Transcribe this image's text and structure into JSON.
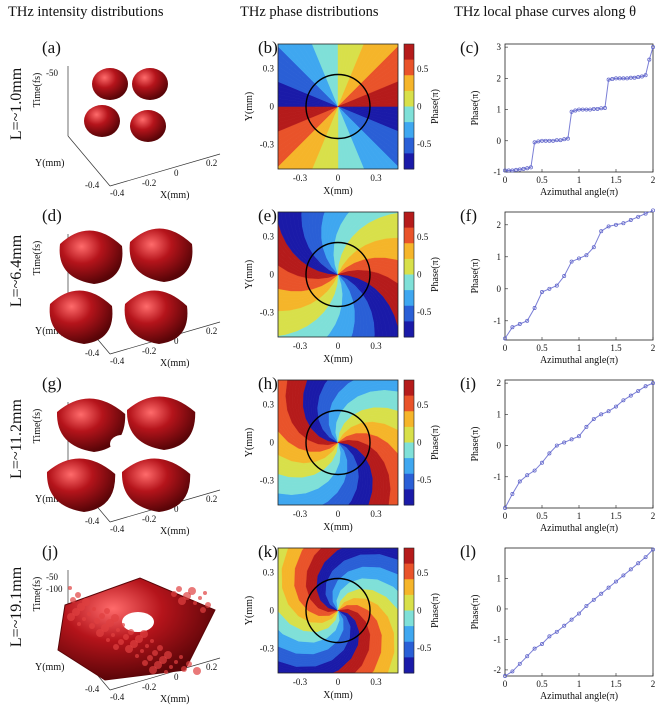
{
  "headers": {
    "col1": "THz intensity distributions",
    "col2": "THz phase distributions",
    "col3": "THz local phase curves along θ"
  },
  "rows": [
    {
      "L": "L=~1.0mm",
      "panels": [
        "(a)",
        "(b)",
        "(c)"
      ],
      "time_ticks": [
        "-50"
      ]
    },
    {
      "L": "L=~6.4mm",
      "panels": [
        "(d)",
        "(e)",
        "(f)"
      ],
      "time_ticks": []
    },
    {
      "L": "L=~11.2mm",
      "panels": [
        "(g)",
        "(h)",
        "(i)"
      ],
      "time_ticks": []
    },
    {
      "L": "L=~19.1mm",
      "panels": [
        "(j)",
        "(k)",
        "(l)"
      ],
      "time_ticks": [
        "-50",
        "-100"
      ]
    }
  ],
  "surface_axes": {
    "time_label": "Time(fs)",
    "y_label": "Y(mm)",
    "x_label": "X(mm)",
    "y_ticks": [
      "-0.4"
    ],
    "x_ticks": [
      "-0.4",
      "-0.2",
      "0",
      "0.2"
    ],
    "colors": {
      "surface": "#b5141b",
      "highlight": "#ff6b6b",
      "shade": "#5a0508"
    }
  },
  "phase_map_axes": {
    "ylabel": "Y(mm)",
    "xlabel": "X(mm)",
    "yticks": [
      "0.3",
      "0",
      "-0.3"
    ],
    "xticks": [
      "-0.3",
      "0",
      "0.3"
    ],
    "cbar_label": "Phase(π)",
    "cbar_ticks": [
      "0.5",
      "0",
      "-0.5"
    ]
  },
  "chart_data": [
    {
      "panel": "(c)",
      "type": "line",
      "xlabel": "Azimuthal angle(π)",
      "ylabel": "Phase(π)",
      "xlim": [
        0,
        2
      ],
      "ylim": [
        -1,
        3.1
      ],
      "xticks": [
        0,
        0.5,
        1,
        1.5,
        2
      ],
      "yticks": [
        -1,
        0,
        1,
        2,
        3
      ],
      "x": [
        0,
        0.05,
        0.1,
        0.15,
        0.2,
        0.25,
        0.3,
        0.35,
        0.4,
        0.45,
        0.5,
        0.55,
        0.6,
        0.65,
        0.7,
        0.75,
        0.8,
        0.85,
        0.9,
        0.95,
        1.0,
        1.05,
        1.1,
        1.15,
        1.2,
        1.25,
        1.3,
        1.35,
        1.4,
        1.45,
        1.5,
        1.55,
        1.6,
        1.65,
        1.7,
        1.75,
        1.8,
        1.85,
        1.9,
        1.95,
        2.0
      ],
      "y": [
        -0.95,
        -0.95,
        -0.95,
        -0.93,
        -0.92,
        -0.9,
        -0.88,
        -0.85,
        -0.05,
        -0.02,
        0,
        0,
        0,
        0,
        0.02,
        0.02,
        0.05,
        0.07,
        0.93,
        0.97,
        1.0,
        1.0,
        1.0,
        1.0,
        1.02,
        1.02,
        1.04,
        1.05,
        1.96,
        1.98,
        2.0,
        2.0,
        2.0,
        2.0,
        2.02,
        2.02,
        2.04,
        2.06,
        2.1,
        2.6,
        3.0
      ]
    },
    {
      "panel": "(f)",
      "type": "line",
      "xlabel": "Azimuthal angle(π)",
      "ylabel": "Phase(π)",
      "xlim": [
        0,
        2
      ],
      "ylim": [
        -1.6,
        2.4
      ],
      "xticks": [
        0,
        0.5,
        1,
        1.5,
        2
      ],
      "yticks": [
        -1,
        0,
        1,
        2
      ],
      "x": [
        0,
        0.1,
        0.2,
        0.3,
        0.4,
        0.5,
        0.6,
        0.7,
        0.8,
        0.9,
        1.0,
        1.1,
        1.2,
        1.3,
        1.4,
        1.5,
        1.6,
        1.7,
        1.8,
        1.9,
        2.0
      ],
      "y": [
        -1.55,
        -1.2,
        -1.1,
        -1.0,
        -0.6,
        -0.1,
        0.0,
        0.1,
        0.4,
        0.85,
        0.95,
        1.05,
        1.3,
        1.8,
        1.95,
        2.0,
        2.05,
        2.15,
        2.25,
        2.35,
        2.45
      ]
    },
    {
      "panel": "(i)",
      "type": "line",
      "xlabel": "Azimuthal angle(π)",
      "ylabel": "Phase(π)",
      "xlim": [
        0,
        2
      ],
      "ylim": [
        -2,
        2.1
      ],
      "xticks": [
        0,
        0.5,
        1,
        1.5,
        2
      ],
      "yticks": [
        -1,
        0,
        1,
        2
      ],
      "x": [
        0,
        0.1,
        0.2,
        0.3,
        0.4,
        0.5,
        0.6,
        0.7,
        0.8,
        0.9,
        1.0,
        1.1,
        1.2,
        1.3,
        1.4,
        1.5,
        1.6,
        1.7,
        1.8,
        1.9,
        2.0
      ],
      "y": [
        -2.0,
        -1.55,
        -1.15,
        -0.95,
        -0.8,
        -0.55,
        -0.25,
        0.0,
        0.1,
        0.2,
        0.3,
        0.6,
        0.85,
        1.0,
        1.1,
        1.25,
        1.45,
        1.6,
        1.75,
        1.9,
        2.0
      ]
    },
    {
      "panel": "(l)",
      "type": "line",
      "xlabel": "Azimuthal angle(π)",
      "ylabel": "Phase(π)",
      "xlim": [
        0,
        2
      ],
      "ylim": [
        -2.2,
        2.0
      ],
      "xticks": [
        0,
        0.5,
        1,
        1.5,
        2
      ],
      "yticks": [
        -2,
        -1,
        0,
        1
      ],
      "x": [
        0,
        0.1,
        0.2,
        0.3,
        0.4,
        0.5,
        0.6,
        0.7,
        0.8,
        0.9,
        1.0,
        1.1,
        1.2,
        1.3,
        1.4,
        1.5,
        1.6,
        1.7,
        1.8,
        1.9,
        2.0
      ],
      "y": [
        -2.2,
        -2.05,
        -1.8,
        -1.55,
        -1.3,
        -1.15,
        -0.9,
        -0.75,
        -0.55,
        -0.35,
        -0.15,
        0.1,
        0.3,
        0.5,
        0.7,
        0.9,
        1.1,
        1.3,
        1.5,
        1.7,
        1.95
      ]
    }
  ]
}
